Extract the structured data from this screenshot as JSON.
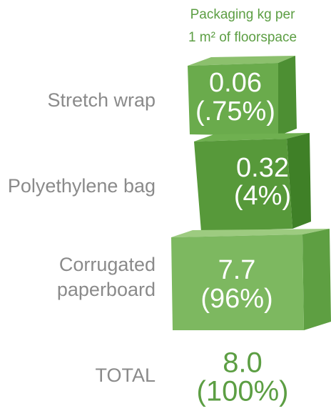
{
  "header": {
    "line1": "Packaging kg per",
    "line2": "1 m² of floorspace"
  },
  "items": [
    {
      "label": [
        "Stretch wrap"
      ],
      "value": "0.06",
      "share": "(.75%)"
    },
    {
      "label": [
        "Polyethylene bag"
      ],
      "value": "0.32",
      "share": "(4%)"
    },
    {
      "label": [
        "Corrugated",
        "paperboard"
      ],
      "value": "7.7",
      "share": "(96%)"
    }
  ],
  "total": {
    "label": "TOTAL",
    "value": "8.0",
    "share": "(100%)"
  }
}
